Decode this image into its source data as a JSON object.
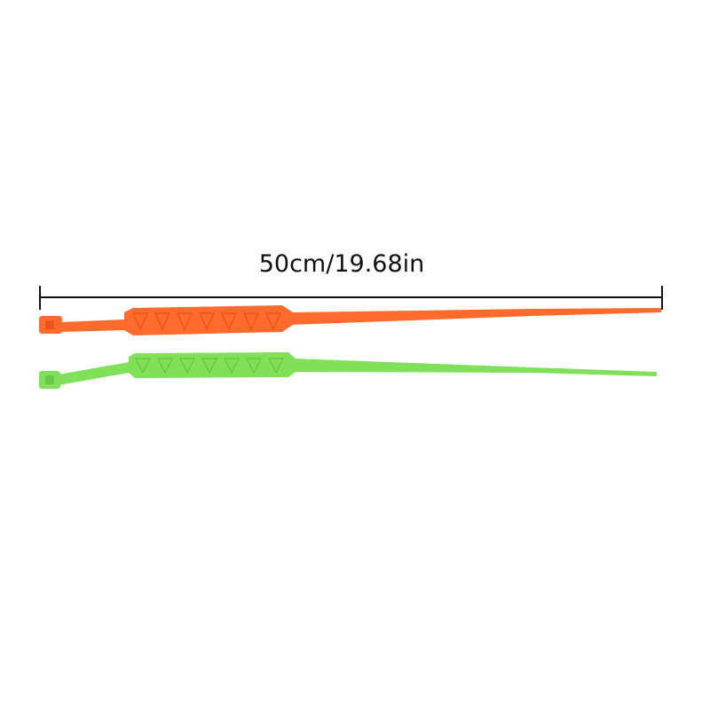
{
  "measurement": {
    "label": "50cm/19.68in"
  },
  "ties": [
    {
      "name": "orange-cable-tie",
      "color": "#ff6b2c",
      "shade": "#e9551a"
    },
    {
      "name": "green-cable-tie",
      "color": "#80e05a",
      "shade": "#67c945"
    }
  ]
}
